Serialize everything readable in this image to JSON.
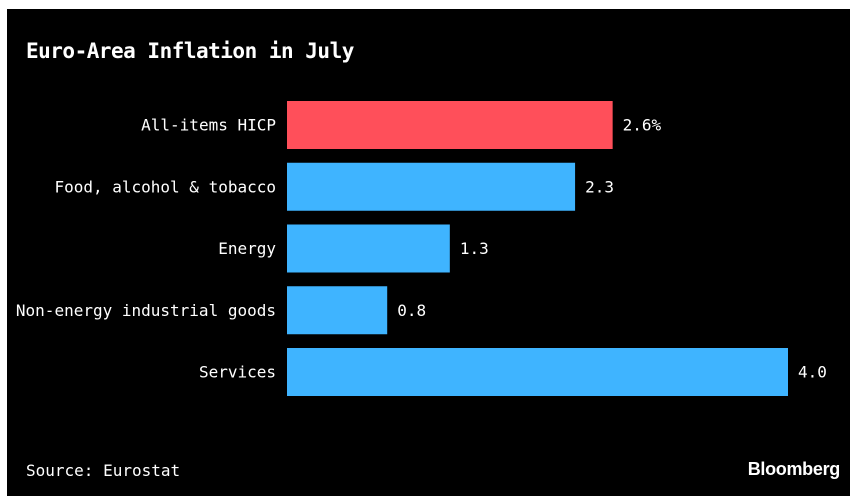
{
  "chart_data": {
    "type": "bar",
    "orientation": "horizontal",
    "title": "Euro-Area Inflation in July",
    "categories": [
      "All-items HICP",
      "Food, alcohol & tobacco",
      "Energy",
      "Non-energy industrial goods",
      "Services"
    ],
    "values": [
      2.6,
      2.3,
      1.3,
      0.8,
      4.0
    ],
    "value_labels": [
      "2.6%",
      "2.3",
      "1.3",
      "0.8",
      "4.0"
    ],
    "bar_colors": [
      "#ff4f5a",
      "#3fb4ff",
      "#3fb4ff",
      "#3fb4ff",
      "#3fb4ff"
    ],
    "xlim": [
      0,
      4.0
    ],
    "grid": false,
    "legend": "none"
  },
  "footer": {
    "source": "Source: Eurostat",
    "brand": "Bloomberg"
  },
  "colors": {
    "background": "#000000",
    "text": "#ffffff"
  }
}
